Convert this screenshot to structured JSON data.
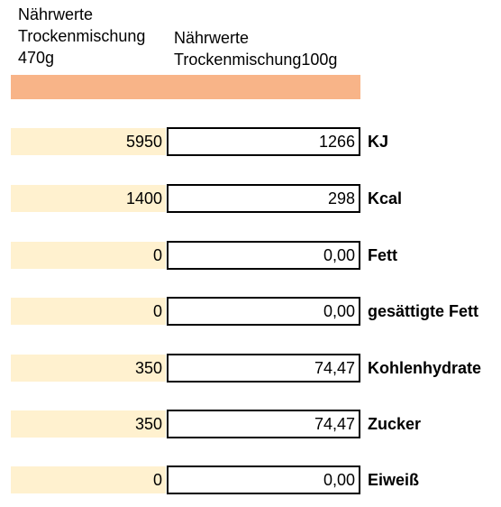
{
  "colors": {
    "header_band": "#F8B488",
    "input_cell": "#FFF1CF",
    "border": "#000000"
  },
  "header": {
    "col_a": [
      "Nährwerte",
      "Trockenmischung",
      "470g"
    ],
    "col_b": [
      "Nährwerte",
      "Trockenmischung100g"
    ]
  },
  "rows": [
    {
      "a": "5950",
      "b": "1266",
      "label": "KJ"
    },
    {
      "a": "1400",
      "b": "298",
      "label": "Kcal"
    },
    {
      "a": "0",
      "b": "0,00",
      "label": "Fett"
    },
    {
      "a": "0",
      "b": "0,00",
      "label": "gesättigte Fett"
    },
    {
      "a": "350",
      "b": "74,47",
      "label": "Kohlenhydrate"
    },
    {
      "a": "350",
      "b": "74,47",
      "label": "Zucker"
    },
    {
      "a": "0",
      "b": "0,00",
      "label": "Eiweiß"
    }
  ]
}
